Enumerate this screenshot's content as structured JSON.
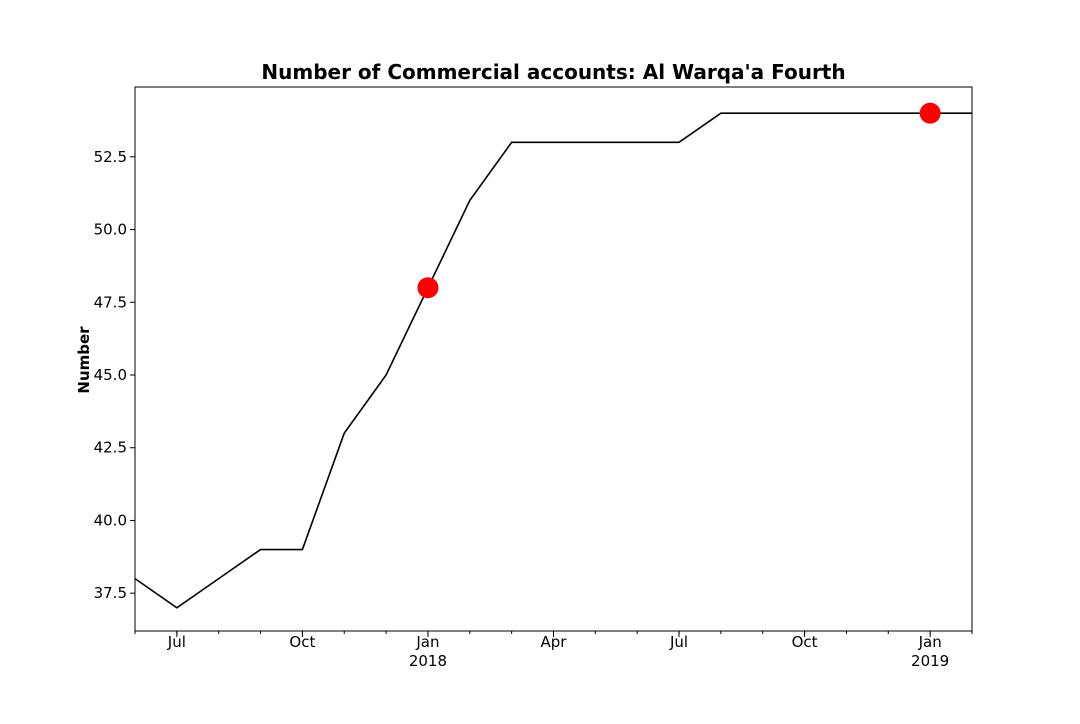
{
  "chart_data": {
    "type": "line",
    "title": "Number of Commercial accounts: Al Warqa'a Fourth",
    "xlabel": "",
    "ylabel": "Number",
    "x": [
      "2017-06",
      "2017-07",
      "2017-08",
      "2017-09",
      "2017-10",
      "2017-11",
      "2017-12",
      "2018-01",
      "2018-02",
      "2018-03",
      "2018-04",
      "2018-05",
      "2018-06",
      "2018-07",
      "2018-08",
      "2018-09",
      "2018-10",
      "2018-11",
      "2018-12",
      "2019-01",
      "2019-02"
    ],
    "series": [
      {
        "values": [
          38,
          37,
          38,
          39,
          39,
          43,
          45,
          48,
          51,
          53,
          53,
          53,
          53,
          53,
          54,
          54,
          54,
          54,
          54,
          54,
          54
        ]
      }
    ],
    "highlighted_points": [
      {
        "x": "2018-01",
        "y": 48
      },
      {
        "x": "2019-01",
        "y": 54
      }
    ],
    "xlim": [
      "2017-06",
      "2019-02"
    ],
    "ylim": [
      36.2,
      54.9
    ],
    "y_ticks": [
      37.5,
      40.0,
      42.5,
      45.0,
      47.5,
      50.0,
      52.5
    ],
    "y_tick_labels": [
      "37.5",
      "40.0",
      "42.5",
      "45.0",
      "47.5",
      "50.0",
      "52.5"
    ],
    "x_major_ticks": [
      {
        "x": "2017-07",
        "label": "Jul",
        "year": ""
      },
      {
        "x": "2017-10",
        "label": "Oct",
        "year": ""
      },
      {
        "x": "2018-01",
        "label": "Jan",
        "year": "2018"
      },
      {
        "x": "2018-04",
        "label": "Apr",
        "year": ""
      },
      {
        "x": "2018-07",
        "label": "Jul",
        "year": ""
      },
      {
        "x": "2018-10",
        "label": "Oct",
        "year": ""
      },
      {
        "x": "2019-01",
        "label": "Jan",
        "year": "2019"
      }
    ],
    "grid": false,
    "legend": "none",
    "line_color": "#000000",
    "highlight_color": "#ff0000"
  }
}
